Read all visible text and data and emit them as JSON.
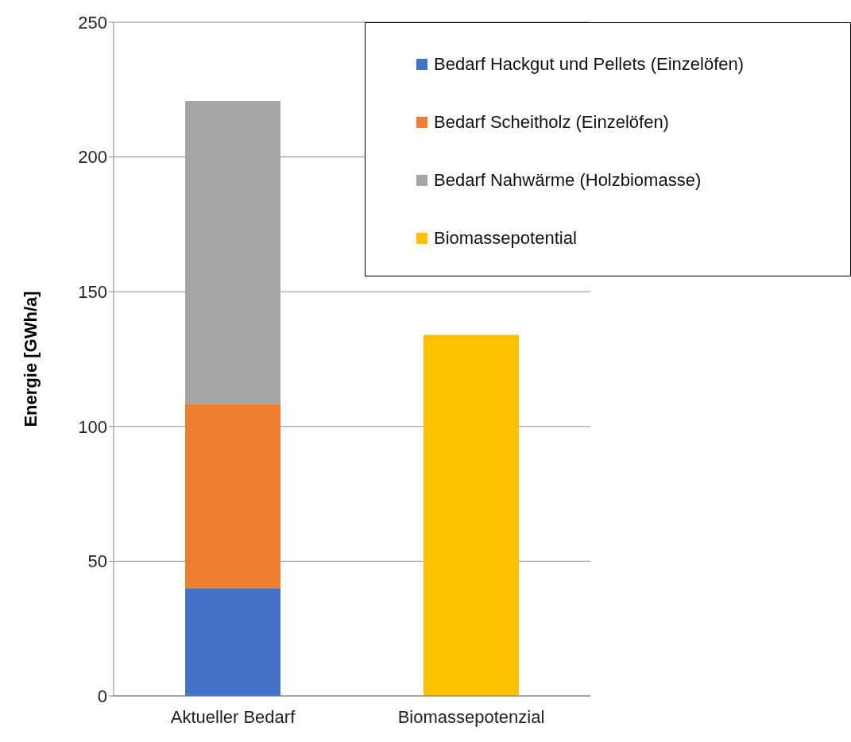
{
  "chart_data": {
    "type": "bar",
    "stacked": true,
    "ylabel": "Energie [GWh/a]",
    "categories": [
      "Aktueller Bedarf",
      "Biomassepotenzial"
    ],
    "series": [
      {
        "name": "Bedarf Hackgut und Pellets (Einzelöfen)",
        "color": "#4472c4",
        "values": [
          40,
          null
        ]
      },
      {
        "name": "Bedarf Scheitholz (Einzelöfen)",
        "color": "#ed7d31",
        "values": [
          68.4,
          null
        ]
      },
      {
        "name": "Bedarf Nahwärme (Holzbiomasse)",
        "color": "#a5a5a5",
        "values": [
          112.4,
          null
        ]
      },
      {
        "name": "Biomassepotential",
        "color": "#ffc000",
        "values": [
          null,
          134
        ]
      }
    ],
    "ylim": [
      0,
      250
    ],
    "yticks": [
      0,
      50,
      100,
      150,
      200,
      250
    ],
    "grid": "y",
    "legend": "top right"
  }
}
